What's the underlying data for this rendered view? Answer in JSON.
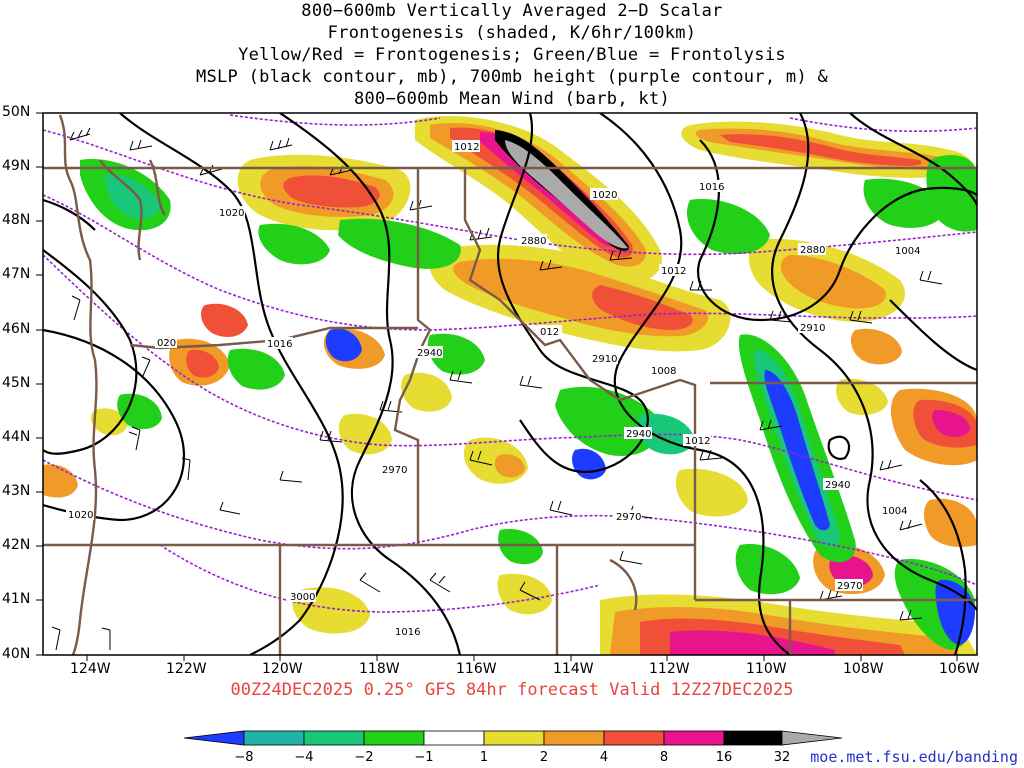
{
  "header": {
    "lines": [
      "800−600mb Vertically Averaged 2−D Scalar",
      "Frontogenesis (shaded, K/6hr/100km)",
      "Yellow/Red = Frontogenesis;  Green/Blue = Frontolysis",
      "MSLP (black contour, mb), 700mb height (purple contour, m) &",
      "800−600mb Mean Wind (barb, kt)"
    ]
  },
  "axes": {
    "lat_labels": [
      "50N",
      "49N",
      "48N",
      "47N",
      "46N",
      "45N",
      "44N",
      "43N",
      "42N",
      "41N",
      "40N"
    ],
    "lon_labels": [
      "124W",
      "122W",
      "120W",
      "118W",
      "116W",
      "114W",
      "112W",
      "110W",
      "108W",
      "106W"
    ]
  },
  "footer": {
    "valid_line": "00Z24DEC2025 0.25° GFS 84hr forecast Valid 12Z27DEC2025",
    "credit": "moe.met.fsu.edu/banding"
  },
  "colorbar": {
    "labels": [
      "−8",
      "−4",
      "−2",
      "−1",
      "1",
      "2",
      "4",
      "8",
      "16",
      "32"
    ],
    "colors": [
      "#1e3cff",
      "#20b4a8",
      "#18c878",
      "#22d01a",
      "#ffffff",
      "#e6dc32",
      "#f09a28",
      "#f05038",
      "#e8148c",
      "#000000",
      "#aaaaaa"
    ]
  },
  "contour_labels": {
    "mslp": [
      "1012",
      "1020",
      "1016",
      "1012",
      "1020",
      "1016",
      "020",
      "1016",
      "012",
      "1008",
      "1012",
      "1004",
      "1020",
      "1016",
      "1004",
      "1012"
    ],
    "height": [
      "2880",
      "2880",
      "2910",
      "2940",
      "2910",
      "2940",
      "2970",
      "2970",
      "2940",
      "3000",
      "2970"
    ]
  },
  "colors": {
    "mslp": "#000000",
    "height": "#9b1fd0",
    "borders": "#7a5a48",
    "footer": "#e8443e"
  }
}
